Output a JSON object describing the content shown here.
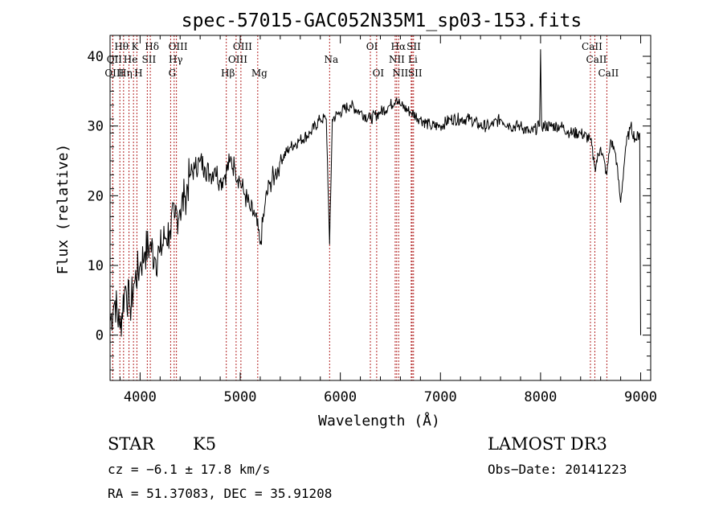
{
  "chart_data": {
    "type": "line",
    "title": "spec-57015-GAC052N35M1_sp03-153.fits",
    "xlabel": "Wavelength (Å)",
    "ylabel": "Flux (relative)",
    "xlim": [
      3700,
      9100
    ],
    "ylim": [
      -6.5,
      43
    ],
    "x_ticks": [
      4000,
      5000,
      6000,
      7000,
      8000,
      9000
    ],
    "y_ticks": [
      0,
      10,
      20,
      30,
      40
    ],
    "series": [
      {
        "name": "spectrum",
        "x": [
          3700,
          3750,
          3800,
          3850,
          3900,
          3950,
          4000,
          4050,
          4100,
          4150,
          4200,
          4250,
          4300,
          4350,
          4400,
          4450,
          4500,
          4550,
          4600,
          4650,
          4700,
          4750,
          4800,
          4850,
          4900,
          4950,
          5000,
          5050,
          5100,
          5150,
          5200,
          5250,
          5300,
          5350,
          5400,
          5500,
          5600,
          5700,
          5800,
          5860,
          5893,
          5920,
          6000,
          6100,
          6200,
          6300,
          6400,
          6500,
          6563,
          6600,
          6700,
          6800,
          6900,
          7000,
          7100,
          7200,
          7300,
          7400,
          7500,
          7600,
          7700,
          7800,
          7900,
          7990,
          8000,
          8010,
          8100,
          8200,
          8300,
          8400,
          8500,
          8542,
          8600,
          8662,
          8700,
          8750,
          8800,
          8850,
          8900,
          8950,
          8990,
          9000
        ],
        "y": [
          2,
          5,
          1,
          7,
          4,
          8,
          10,
          12,
          13,
          11,
          12,
          14,
          15,
          17,
          18,
          20,
          23,
          24,
          25,
          24,
          23,
          24,
          22,
          23,
          25,
          24,
          22,
          20,
          18,
          17,
          13,
          19,
          22,
          23,
          25,
          27,
          28,
          29,
          31,
          31,
          13,
          31,
          32,
          33,
          32,
          31,
          32,
          33,
          34,
          33,
          32,
          31,
          30,
          30,
          31,
          31,
          31,
          30,
          30,
          31,
          30,
          30,
          29,
          30,
          41,
          30,
          30,
          30,
          29,
          29,
          28,
          24,
          27,
          23,
          28,
          26,
          19,
          27,
          30,
          28,
          29,
          0
        ]
      }
    ],
    "lines": [
      {
        "label": "Hθ",
        "wl": 3798,
        "row": 0
      },
      {
        "label": "K",
        "wl": 3934,
        "row": 0
      },
      {
        "label": "Hδ",
        "wl": 4102,
        "row": 0
      },
      {
        "label": "OIII",
        "wl": 4363,
        "row": 0
      },
      {
        "label": "OIII",
        "wl": 5007,
        "row": 0
      },
      {
        "label": "OI",
        "wl": 6300,
        "row": 0
      },
      {
        "label": "Hα",
        "wl": 6563,
        "row": 0
      },
      {
        "label": "SII",
        "wl": 6717,
        "row": 0
      },
      {
        "label": "CaII",
        "wl": 8498,
        "row": 0
      },
      {
        "label": "OII",
        "wl": 3727,
        "row": 1
      },
      {
        "label": "He",
        "wl": 3889,
        "row": 1
      },
      {
        "label": "SII",
        "wl": 4072,
        "row": 1
      },
      {
        "label": "Hγ",
        "wl": 4340,
        "row": 1
      },
      {
        "label": "OIII",
        "wl": 4959,
        "row": 1
      },
      {
        "label": "NII",
        "wl": 6548,
        "row": 1
      },
      {
        "label": "Li",
        "wl": 6708,
        "row": 1
      },
      {
        "label": "CaII",
        "wl": 8542,
        "row": 1
      },
      {
        "label": "Na",
        "wl": 5893,
        "row": 1
      },
      {
        "label": "OIII",
        "wl": 3727,
        "row": 2
      },
      {
        "label": "Hη",
        "wl": 3835,
        "row": 2
      },
      {
        "label": "H",
        "wl": 3968,
        "row": 2
      },
      {
        "label": "G",
        "wl": 4305,
        "row": 2
      },
      {
        "label": "Hβ",
        "wl": 4861,
        "row": 2
      },
      {
        "label": "Mg",
        "wl": 5175,
        "row": 2
      },
      {
        "label": "OI",
        "wl": 6363,
        "row": 2
      },
      {
        "label": "NII",
        "wl": 6583,
        "row": 2
      },
      {
        "label": "SII",
        "wl": 6731,
        "row": 2
      },
      {
        "label": "CaII",
        "wl": 8662,
        "row": 2
      }
    ]
  },
  "info": {
    "class_label": "STAR",
    "subclass_label": "K5",
    "survey": "LAMOST DR3",
    "redshift": "cz = −6.1 ± 17.8 km/s",
    "obs_date": "Obs−Date: 20141223",
    "coords": "RA =  51.37083, DEC =  35.91208"
  }
}
